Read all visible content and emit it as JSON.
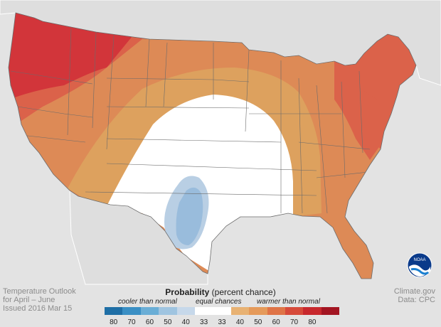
{
  "map": {
    "type": "choropleth",
    "region": "Contiguous United States",
    "categories": [
      {
        "label": "cooler than normal",
        "range": "33-40",
        "color": "#b9cfe4"
      },
      {
        "label": "cooler than normal",
        "range": "40-50",
        "color": "#99bcdc"
      },
      {
        "label": "equal chances",
        "color": "#ffffff"
      },
      {
        "label": "warmer than normal",
        "range": "33-40",
        "color": "#dda15e"
      },
      {
        "label": "warmer than normal",
        "range": "40-50",
        "color": "#dd8a56"
      },
      {
        "label": "warmer than normal",
        "range": "50-60",
        "color": "#db624a"
      },
      {
        "label": "warmer than normal",
        "range": "60-70",
        "color": "#d2353a"
      }
    ]
  },
  "caption": {
    "line1": "Temperature Outlook",
    "line2": "for April – June",
    "line3": "Issued 2016 Mar 15"
  },
  "credit": {
    "line1": "Climate.gov",
    "line2": "Data: CPC"
  },
  "legend": {
    "title": "Probability",
    "subtitle": "(percent chance)",
    "cooler_label": "cooler than normal",
    "equal_label": "equal chances",
    "warmer_label": "warmer than normal",
    "colors": [
      "#1f6fa6",
      "#3a8fc4",
      "#6aaed6",
      "#9fc4e0",
      "#c6d8ea",
      "#ffffff",
      "#ffffff",
      "#e8b273",
      "#e59a5a",
      "#df7447",
      "#d64a3a",
      "#c7282d",
      "#a31522"
    ],
    "ticks": [
      "80",
      "70",
      "60",
      "50",
      "40",
      "33",
      "33",
      "40",
      "50",
      "60",
      "70",
      "80"
    ]
  },
  "logo": {
    "text": "NOAA"
  }
}
